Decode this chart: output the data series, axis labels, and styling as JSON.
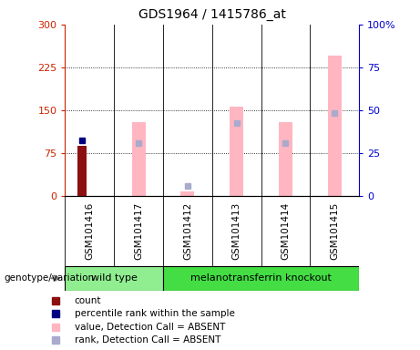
{
  "title": "GDS1964 / 1415786_at",
  "samples": [
    "GSM101416",
    "GSM101417",
    "GSM101412",
    "GSM101413",
    "GSM101414",
    "GSM101415"
  ],
  "ylim_left": [
    0,
    300
  ],
  "ylim_right": [
    0,
    100
  ],
  "yticks_left": [
    0,
    75,
    150,
    225,
    300
  ],
  "ytick_labels_left": [
    "0",
    "75",
    "150",
    "225",
    "300"
  ],
  "yticks_right": [
    0,
    25,
    50,
    75,
    100
  ],
  "ytick_labels_right": [
    "0",
    "25",
    "50",
    "75",
    "100%"
  ],
  "red_bar_val": {
    "GSM101416": 88
  },
  "blue_sq_val": {
    "GSM101416": 98
  },
  "pink_bar_val": {
    "GSM101417": 130,
    "GSM101412": 8,
    "GSM101413": 157,
    "GSM101414": 130,
    "GSM101415": 245
  },
  "lav_sq_val": {
    "GSM101417": 92,
    "GSM101412": 18,
    "GSM101413": 128,
    "GSM101414": 92,
    "GSM101415": 145
  },
  "red_color": "#8B1010",
  "blue_color": "#000080",
  "pink_color": "#FFB6C1",
  "lav_color": "#AAAACC",
  "axis_left_color": "#CC2200",
  "axis_right_color": "#0000CC",
  "wt_color": "#90EE90",
  "ko_color": "#44DD44",
  "cell_color": "#C8C8C8",
  "legend_items": [
    {
      "label": "count",
      "color": "#8B1010"
    },
    {
      "label": "percentile rank within the sample",
      "color": "#000080"
    },
    {
      "label": "value, Detection Call = ABSENT",
      "color": "#FFB6C1"
    },
    {
      "label": "rank, Detection Call = ABSENT",
      "color": "#AAAACC"
    }
  ],
  "genotype_label": "genotype/variation"
}
